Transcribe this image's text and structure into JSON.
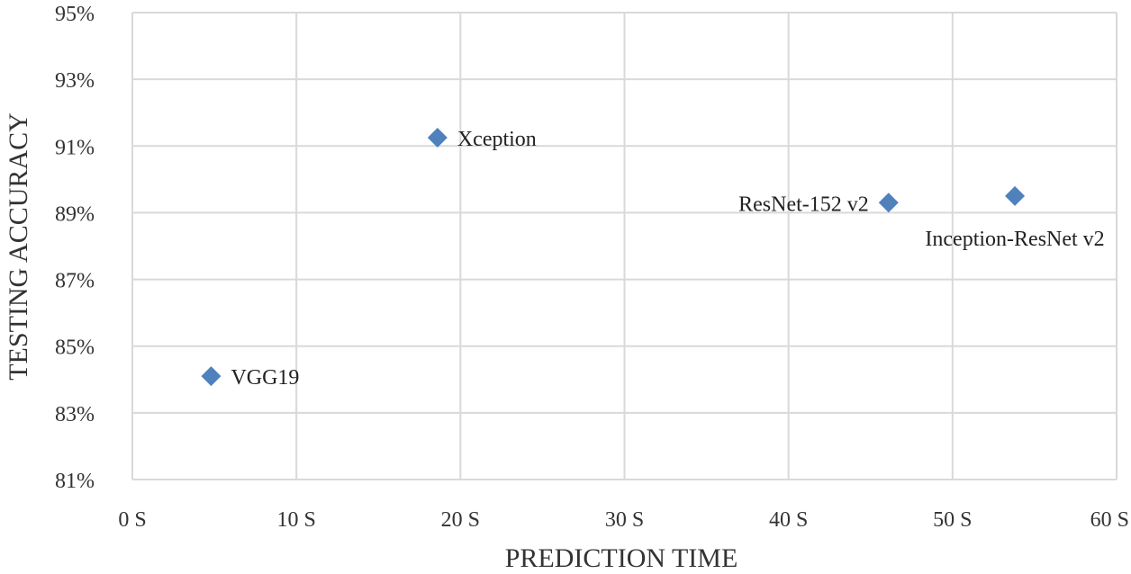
{
  "chart_data": {
    "type": "scatter",
    "title": "",
    "xlabel": "PREDICTION TIME",
    "ylabel": "TESTING ACCURACY",
    "xlim": [
      0,
      60
    ],
    "ylim": [
      81,
      95
    ],
    "grid": true,
    "legend": "none",
    "marker": "diamond",
    "marker_color": "#4f81bd",
    "x_ticks": [
      {
        "value": 0,
        "label": "0 S"
      },
      {
        "value": 10,
        "label": "10 S"
      },
      {
        "value": 20,
        "label": "20 S"
      },
      {
        "value": 30,
        "label": "30 S"
      },
      {
        "value": 40,
        "label": "40 S"
      },
      {
        "value": 50,
        "label": "50 S"
      },
      {
        "value": 60,
        "label": "60 S"
      }
    ],
    "y_ticks": [
      {
        "value": 81,
        "label": "81%"
      },
      {
        "value": 83,
        "label": "83%"
      },
      {
        "value": 85,
        "label": "85%"
      },
      {
        "value": 87,
        "label": "87%"
      },
      {
        "value": 89,
        "label": "89%"
      },
      {
        "value": 91,
        "label": "91%"
      },
      {
        "value": 93,
        "label": "93%"
      },
      {
        "value": 95,
        "label": "95%"
      }
    ],
    "points": [
      {
        "label": "VGG19",
        "x": 4.8,
        "y": 84.1,
        "label_position": "right"
      },
      {
        "label": "Xception",
        "x": 18.6,
        "y": 91.25,
        "label_position": "right"
      },
      {
        "label": "ResNet-152 v2",
        "x": 46.1,
        "y": 89.3,
        "label_position": "left"
      },
      {
        "label": "Inception-ResNet v2",
        "x": 53.8,
        "y": 89.5,
        "label_position": "below"
      }
    ]
  }
}
